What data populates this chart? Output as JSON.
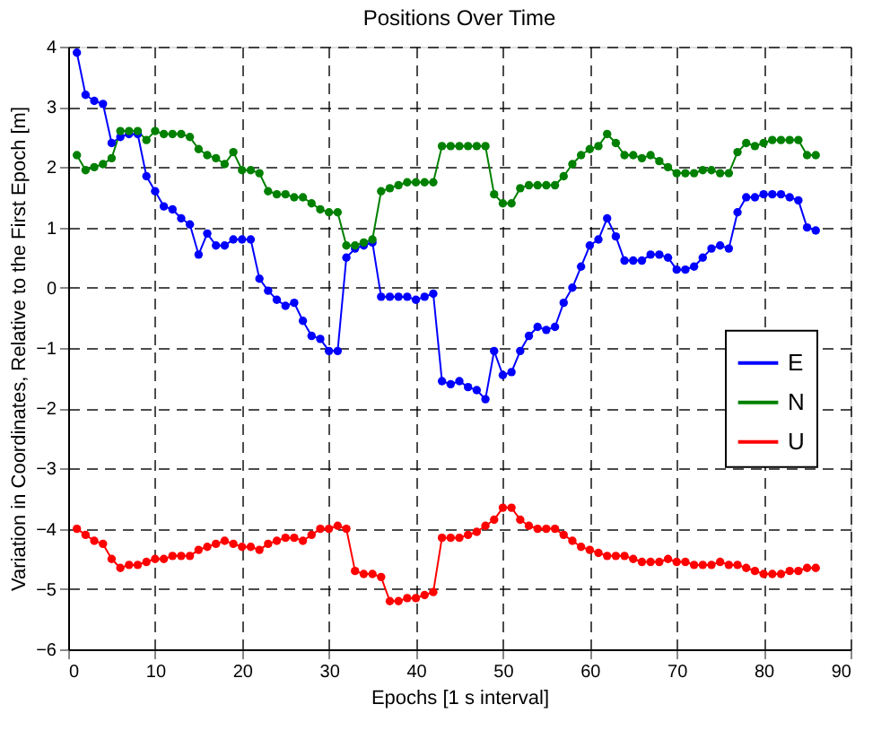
{
  "chart_data": {
    "type": "line",
    "title": "Positions Over Time",
    "xlabel": "Epochs [1 s interval]",
    "ylabel": "Variation in Coordinates, Relative to the First Epoch [m]",
    "x": [
      1,
      2,
      3,
      4,
      5,
      6,
      7,
      8,
      9,
      10,
      11,
      12,
      13,
      14,
      15,
      16,
      17,
      18,
      19,
      20,
      21,
      22,
      23,
      24,
      25,
      26,
      27,
      28,
      29,
      30,
      31,
      32,
      33,
      34,
      35,
      36,
      37,
      38,
      39,
      40,
      41,
      42,
      43,
      44,
      45,
      46,
      47,
      48,
      49,
      50,
      51,
      52,
      53,
      54,
      55,
      56,
      57,
      58,
      59,
      60,
      61,
      62,
      63,
      64,
      65,
      66,
      67,
      68,
      69,
      70,
      71,
      72,
      73,
      74,
      75,
      76,
      77,
      78,
      79,
      80,
      81,
      82,
      83,
      84,
      85,
      86
    ],
    "series": [
      {
        "name": "E",
        "color": "#0000ff",
        "values": [
          3.9,
          3.2,
          3.1,
          3.05,
          2.4,
          2.5,
          2.55,
          2.55,
          1.85,
          1.6,
          1.35,
          1.3,
          1.15,
          1.05,
          0.55,
          0.9,
          0.7,
          0.7,
          0.8,
          0.8,
          0.8,
          0.15,
          -0.05,
          -0.2,
          -0.3,
          -0.25,
          -0.55,
          -0.8,
          -0.85,
          -1.05,
          -1.05,
          0.5,
          0.65,
          0.7,
          0.75,
          -0.15,
          -0.15,
          -0.15,
          -0.15,
          -0.2,
          -0.15,
          -0.1,
          -1.55,
          -1.6,
          -1.55,
          -1.65,
          -1.7,
          -1.85,
          -1.05,
          -1.45,
          -1.4,
          -1.05,
          -0.8,
          -0.65,
          -0.7,
          -0.65,
          -0.25,
          0.0,
          0.35,
          0.7,
          0.8,
          1.15,
          0.85,
          0.45,
          0.45,
          0.45,
          0.55,
          0.55,
          0.5,
          0.3,
          0.3,
          0.35,
          0.5,
          0.65,
          0.7,
          0.65,
          1.25,
          1.5,
          1.5,
          1.55,
          1.55,
          1.55,
          1.5,
          1.45,
          1.0,
          0.95
        ]
      },
      {
        "name": "N",
        "color": "#008000",
        "values": [
          2.2,
          1.95,
          2.0,
          2.05,
          2.15,
          2.6,
          2.6,
          2.6,
          2.45,
          2.6,
          2.55,
          2.55,
          2.55,
          2.5,
          2.3,
          2.2,
          2.15,
          2.05,
          2.25,
          1.95,
          1.95,
          1.9,
          1.6,
          1.55,
          1.55,
          1.5,
          1.5,
          1.4,
          1.3,
          1.25,
          1.25,
          0.7,
          0.7,
          0.75,
          0.8,
          1.6,
          1.65,
          1.7,
          1.75,
          1.75,
          1.75,
          1.75,
          2.35,
          2.35,
          2.35,
          2.35,
          2.35,
          2.35,
          1.55,
          1.4,
          1.4,
          1.65,
          1.7,
          1.7,
          1.7,
          1.7,
          1.85,
          2.05,
          2.2,
          2.3,
          2.35,
          2.55,
          2.4,
          2.2,
          2.2,
          2.15,
          2.2,
          2.1,
          2.0,
          1.9,
          1.9,
          1.9,
          1.95,
          1.95,
          1.9,
          1.9,
          2.25,
          2.4,
          2.35,
          2.4,
          2.45,
          2.45,
          2.45,
          2.45,
          2.2,
          2.2
        ]
      },
      {
        "name": "U",
        "color": "#ff0000",
        "values": [
          -4.0,
          -4.1,
          -4.2,
          -4.25,
          -4.5,
          -4.65,
          -4.6,
          -4.6,
          -4.55,
          -4.5,
          -4.5,
          -4.45,
          -4.45,
          -4.45,
          -4.35,
          -4.3,
          -4.25,
          -4.2,
          -4.25,
          -4.3,
          -4.3,
          -4.35,
          -4.25,
          -4.2,
          -4.15,
          -4.15,
          -4.2,
          -4.1,
          -4.0,
          -4.0,
          -3.95,
          -4.0,
          -4.7,
          -4.75,
          -4.75,
          -4.8,
          -5.2,
          -5.2,
          -5.15,
          -5.15,
          -5.1,
          -5.05,
          -4.15,
          -4.15,
          -4.15,
          -4.1,
          -4.05,
          -3.95,
          -3.85,
          -3.65,
          -3.65,
          -3.85,
          -3.95,
          -4.0,
          -4.0,
          -4.0,
          -4.1,
          -4.2,
          -4.3,
          -4.35,
          -4.4,
          -4.45,
          -4.45,
          -4.45,
          -4.5,
          -4.55,
          -4.55,
          -4.55,
          -4.5,
          -4.55,
          -4.55,
          -4.6,
          -4.6,
          -4.6,
          -4.55,
          -4.6,
          -4.6,
          -4.65,
          -4.7,
          -4.75,
          -4.75,
          -4.75,
          -4.7,
          -4.7,
          -4.65,
          -4.65
        ]
      }
    ],
    "xlim": [
      0,
      90
    ],
    "xticks": [
      0,
      10,
      20,
      30,
      40,
      50,
      60,
      70,
      80,
      90
    ],
    "ylim": [
      -6,
      4
    ],
    "yticks": [
      -6,
      -5,
      -4,
      -3,
      -2,
      -1,
      0,
      1,
      2,
      3,
      4
    ],
    "grid": true,
    "legend": "right",
    "marker": "circle",
    "line_style": "solid"
  }
}
